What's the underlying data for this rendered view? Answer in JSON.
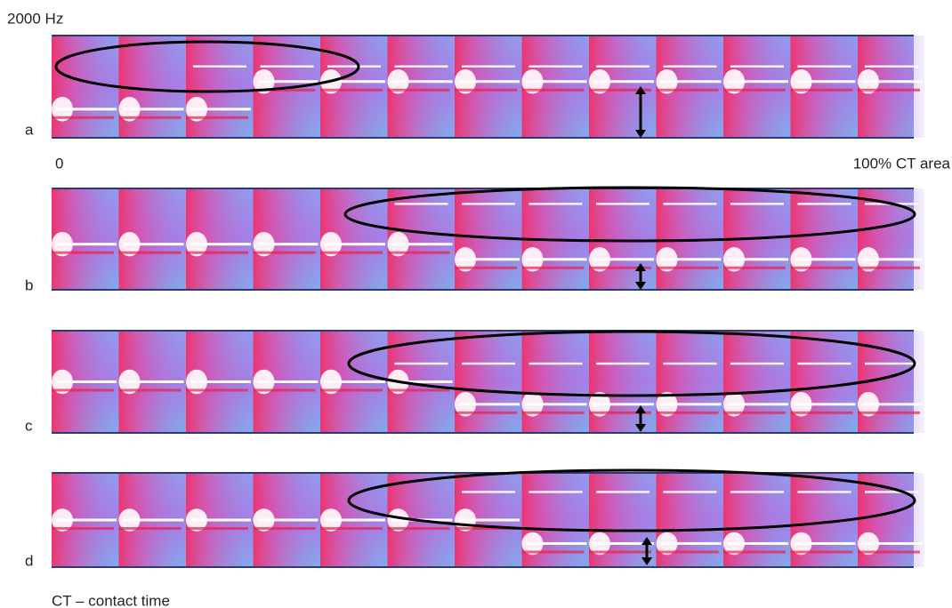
{
  "header": {
    "frequency_label": "2000 Hz"
  },
  "panels": [
    {
      "label": "a"
    },
    {
      "label": "b"
    },
    {
      "label": "c"
    },
    {
      "label": "d"
    }
  ],
  "axis": {
    "start": "0",
    "end": "100% CT area"
  },
  "footnote": "CT – contact time"
}
